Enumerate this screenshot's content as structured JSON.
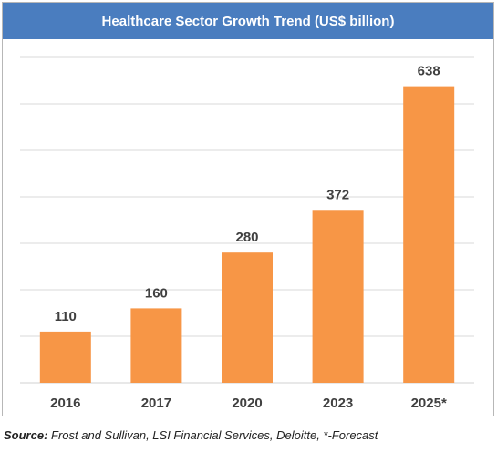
{
  "title": "Healthcare Sector Growth Trend (US$ billion)",
  "source_label": "Source:",
  "source_text": " Frost and Sullivan, LSI Financial Services, Deloitte, *-Forecast",
  "colors": {
    "bar": "#f79646",
    "title_bg": "#4a7dbf",
    "grid": "#d9d9d9"
  },
  "chart_data": {
    "type": "bar",
    "title": "Healthcare Sector Growth Trend (US$ billion)",
    "categories": [
      "2016",
      "2017",
      "2020",
      "2023",
      "2025*"
    ],
    "values": [
      110,
      160,
      280,
      372,
      638
    ],
    "ylim": [
      0,
      700
    ],
    "grid": true,
    "xlabel": "",
    "ylabel": ""
  }
}
